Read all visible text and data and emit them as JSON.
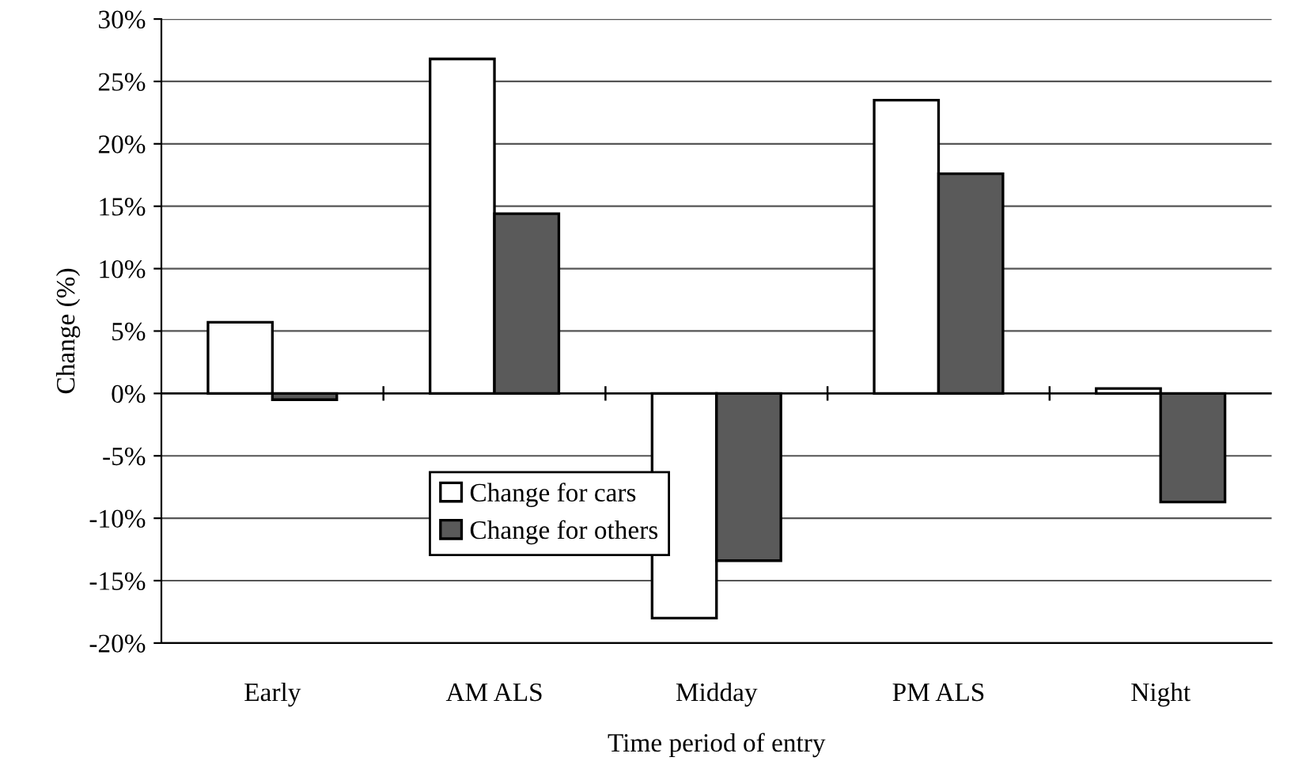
{
  "chart_data": {
    "type": "bar",
    "xlabel": "Time period of entry",
    "ylabel": "Change (%)",
    "categories": [
      "Early",
      "AM ALS",
      "Midday",
      "PM ALS",
      "Night"
    ],
    "series": [
      {
        "name": "Change for cars",
        "color": "#ffffff",
        "values": [
          5.7,
          26.8,
          -18.0,
          23.5,
          0.4
        ]
      },
      {
        "name": "Change for others",
        "color": "#5a5a5a",
        "values": [
          -0.5,
          14.4,
          -13.4,
          17.6,
          -8.7
        ]
      }
    ],
    "ylim": [
      -20,
      30
    ],
    "yticks": [
      {
        "value": -20,
        "label": "-20%"
      },
      {
        "value": -15,
        "label": "-15%"
      },
      {
        "value": -10,
        "label": "-10%"
      },
      {
        "value": -5,
        "label": "-5%"
      },
      {
        "value": 0,
        "label": "0%"
      },
      {
        "value": 5,
        "label": "5%"
      },
      {
        "value": 10,
        "label": "10%"
      },
      {
        "value": 15,
        "label": "15%"
      },
      {
        "value": 20,
        "label": "20%"
      },
      {
        "value": 25,
        "label": "25%"
      },
      {
        "value": 30,
        "label": "30%"
      }
    ],
    "grid": "y",
    "legend": "bottom left"
  }
}
